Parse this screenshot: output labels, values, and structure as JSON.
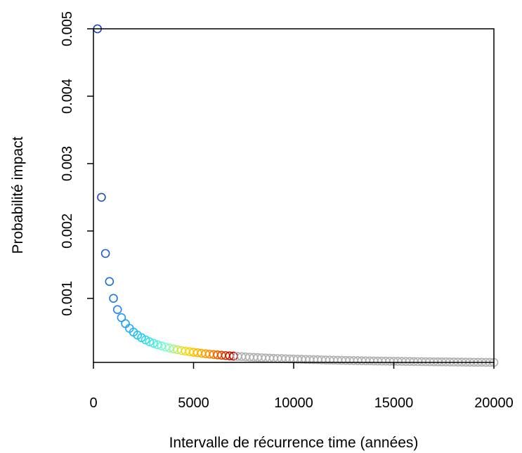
{
  "chart_data": {
    "type": "scatter",
    "title": "",
    "xlabel": "Intervalle de récurrence time (années)",
    "ylabel": "Probabilité impact",
    "xlim": [
      0,
      20000
    ],
    "ylim": [
      5e-05,
      0.005
    ],
    "x_ticks": [
      0,
      5000,
      10000,
      15000,
      20000
    ],
    "x_tick_labels": [
      "0",
      "5000",
      "10000",
      "15000",
      "20000"
    ],
    "y_ticks": [
      0.001,
      0.002,
      0.003,
      0.004,
      0.005
    ],
    "y_tick_labels": [
      "0.001",
      "0.002",
      "0.003",
      "0.004",
      "0.005"
    ],
    "marker": "open-circle",
    "grid": false,
    "legend": "none",
    "function": "y = 1 / x",
    "x_start": 200,
    "x_step": 200,
    "x_end": 20000,
    "colored_until_x": 7000,
    "gradient_colors": [
      "#1f3fbf",
      "#1e90ff",
      "#22d3ee",
      "#7fffd4",
      "#ffd700",
      "#ff8c00",
      "#c00000"
    ],
    "grey_color": "#b0b0b0"
  }
}
